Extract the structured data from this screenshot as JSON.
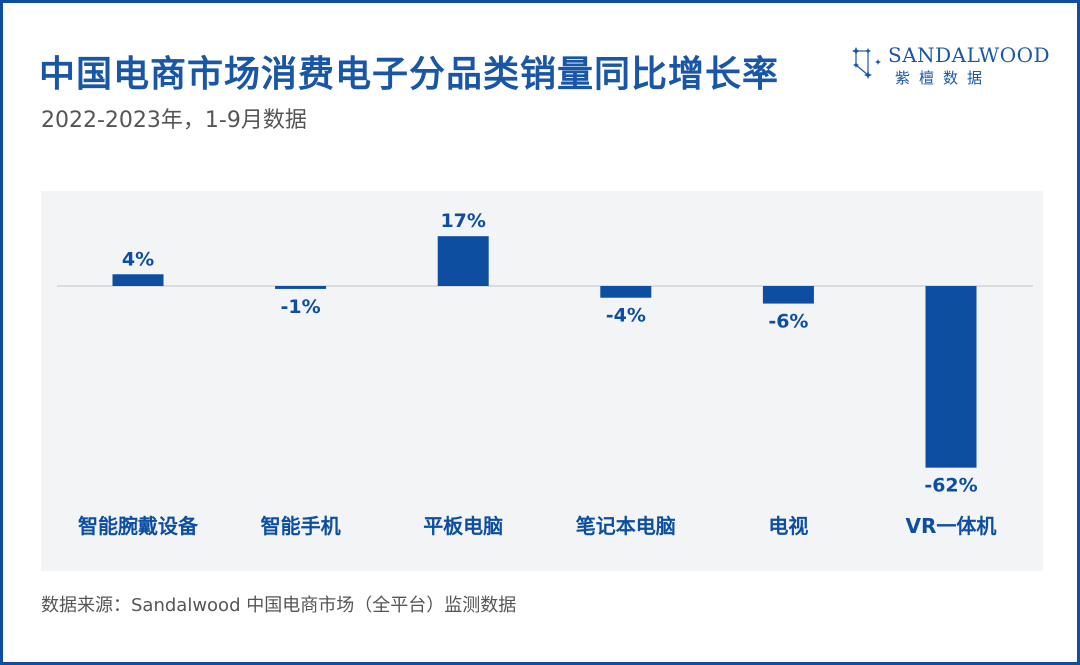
{
  "header": {
    "title": "中国电商市场消费电子分品类销量同比增长率",
    "subtitle": "2022-2023年，1-9月数据"
  },
  "logo": {
    "brand_en": "SANDALWOOD",
    "brand_cn": "紫檀数据",
    "icon": "constellation-star-icon"
  },
  "footer": {
    "source": "数据来源：Sandalwood 中国电商市场（全平台）监测数据"
  },
  "colors": {
    "bar": "#0d4ea0",
    "title": "#1a56a6",
    "frame": "#0d4ea0",
    "panel": "#f3f4f6"
  },
  "chart_data": {
    "type": "bar",
    "title": "中国电商市场消费电子分品类销量同比增长率",
    "subtitle": "2022-2023年，1-9月数据",
    "categories": [
      "智能腕戴设备",
      "智能手机",
      "平板电脑",
      "笔记本电脑",
      "电视",
      "VR一体机"
    ],
    "values": [
      4,
      -1,
      17,
      -4,
      -6,
      -62
    ],
    "data_labels": [
      "4%",
      "-1%",
      "17%",
      "-4%",
      "-6%",
      "-62%"
    ],
    "unit": "%",
    "xlabel": "",
    "ylabel": "",
    "ylim": [
      -62,
      17
    ],
    "grid": false,
    "legend": "none"
  }
}
